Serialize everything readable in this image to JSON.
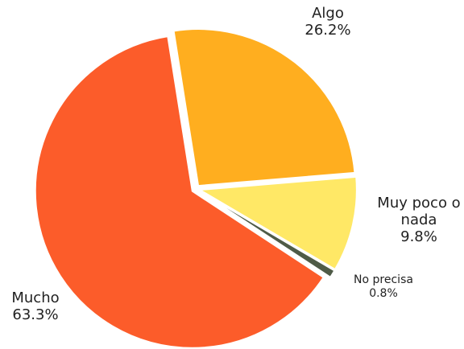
{
  "chart_data": {
    "type": "pie",
    "categories": [
      "Algo",
      "Muy poco o nada",
      "No precisa",
      "Mucho"
    ],
    "values": [
      26.2,
      9.8,
      0.8,
      63.3
    ],
    "value_labels": [
      "26.2%",
      "9.8%",
      "0.8%",
      "63.3%"
    ],
    "colors": [
      "#FFAE1F",
      "#FFE866",
      "#4F5B47",
      "#FC5C2A"
    ]
  }
}
